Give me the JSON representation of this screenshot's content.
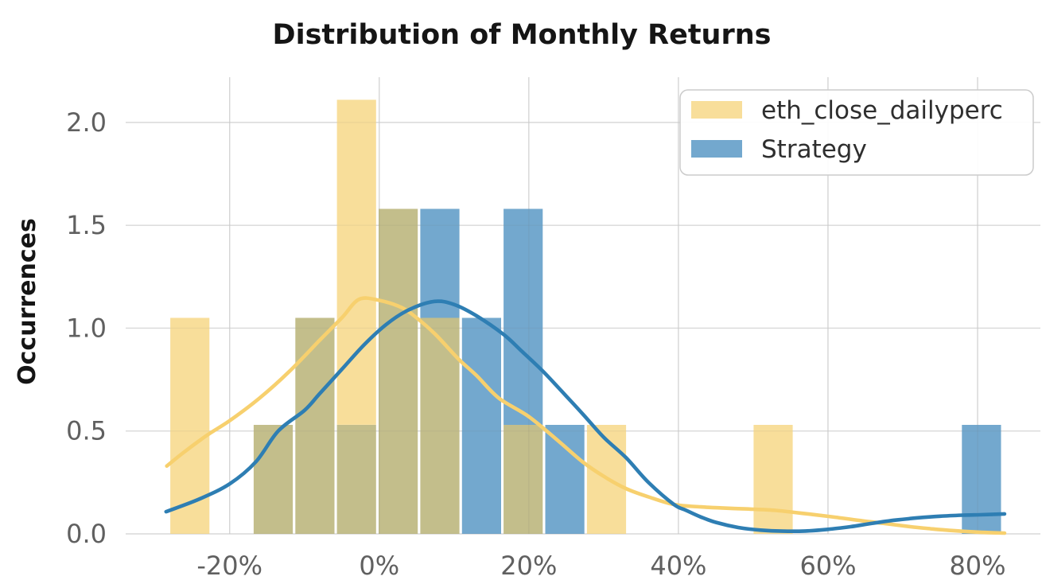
{
  "chart_data": {
    "type": "bar",
    "subtype": "overlapping-histogram-with-kde",
    "title": "Distribution of Monthly Returns",
    "ylabel": "Occurrences",
    "xlabel": "",
    "grid": true,
    "legend_position": "upper right",
    "x_tick_labels": [
      "-20%",
      "0%",
      "20%",
      "40%",
      "60%",
      "80%"
    ],
    "x_tick_values": [
      -20,
      0,
      20,
      40,
      60,
      80
    ],
    "y_tick_labels": [
      "0.0",
      "0.5",
      "1.0",
      "1.5",
      "2.0"
    ],
    "y_tick_values": [
      0,
      0.5,
      1.0,
      1.5,
      2.0
    ],
    "xlim": [
      -33.9,
      88.4
    ],
    "ylim": [
      0,
      2.22
    ],
    "x_unit": "percent",
    "bins": {
      "start": -28.1,
      "width": 5.57,
      "count": 20
    },
    "series": [
      {
        "name": "eth_close_dailyperc",
        "color": "#F8DE9A",
        "values": [
          1.05,
          0,
          0.53,
          1.05,
          2.11,
          1.58,
          1.05,
          0,
          0.53,
          0,
          0.53,
          0,
          0,
          0,
          0.53,
          0,
          0,
          0,
          0,
          0
        ]
      },
      {
        "name": "Strategy",
        "color": "#73A8CE",
        "values": [
          0,
          0,
          0.53,
          1.05,
          0.53,
          1.58,
          1.58,
          1.05,
          1.58,
          0.53,
          0,
          0,
          0,
          0,
          0,
          0,
          0,
          0,
          0,
          0.53
        ]
      }
    ],
    "overlap_color": "#C3BE8B",
    "kde": [
      {
        "name": "eth_close_dailyperc",
        "color": "#F7D06E",
        "points": [
          [
            -28.4,
            0.33
          ],
          [
            -26,
            0.4
          ],
          [
            -23,
            0.48
          ],
          [
            -20,
            0.55
          ],
          [
            -16,
            0.66
          ],
          [
            -12,
            0.79
          ],
          [
            -8,
            0.94
          ],
          [
            -5,
            1.05
          ],
          [
            -2.7,
            1.14
          ],
          [
            0,
            1.135
          ],
          [
            3,
            1.1
          ],
          [
            5,
            1.05
          ],
          [
            7.5,
            0.97
          ],
          [
            10.6,
            0.85
          ],
          [
            13,
            0.77
          ],
          [
            16,
            0.66
          ],
          [
            20,
            0.57
          ],
          [
            24,
            0.45
          ],
          [
            27.2,
            0.35
          ],
          [
            30,
            0.28
          ],
          [
            33,
            0.22
          ],
          [
            36,
            0.18
          ],
          [
            39.4,
            0.143
          ],
          [
            43,
            0.131
          ],
          [
            47,
            0.124
          ],
          [
            50,
            0.12
          ],
          [
            53,
            0.114
          ],
          [
            55.6,
            0.104
          ],
          [
            58,
            0.094
          ],
          [
            61,
            0.081
          ],
          [
            64,
            0.066
          ],
          [
            67.7,
            0.05
          ],
          [
            71,
            0.035
          ],
          [
            74,
            0.024
          ],
          [
            77,
            0.015
          ],
          [
            80.3,
            0.008
          ],
          [
            83.6,
            0.004
          ]
        ]
      },
      {
        "name": "Strategy",
        "color": "#2E7EB3",
        "points": [
          [
            -28.5,
            0.108
          ],
          [
            -24,
            0.17
          ],
          [
            -20,
            0.243
          ],
          [
            -16.5,
            0.35
          ],
          [
            -13.5,
            0.5
          ],
          [
            -10,
            0.6
          ],
          [
            -8,
            0.68
          ],
          [
            -5,
            0.8
          ],
          [
            -2,
            0.92
          ],
          [
            1,
            1.02
          ],
          [
            4,
            1.09
          ],
          [
            7.4,
            1.13
          ],
          [
            10,
            1.115
          ],
          [
            13,
            1.06
          ],
          [
            16.6,
            0.97
          ],
          [
            19,
            0.89
          ],
          [
            21.9,
            0.79
          ],
          [
            25,
            0.67
          ],
          [
            27.4,
            0.575
          ],
          [
            30,
            0.47
          ],
          [
            33,
            0.37
          ],
          [
            36,
            0.25
          ],
          [
            39.4,
            0.143
          ],
          [
            41,
            0.115
          ],
          [
            43,
            0.082
          ],
          [
            45,
            0.056
          ],
          [
            48,
            0.031
          ],
          [
            51,
            0.018
          ],
          [
            54,
            0.013
          ],
          [
            57,
            0.014
          ],
          [
            60,
            0.022
          ],
          [
            63,
            0.035
          ],
          [
            66,
            0.052
          ],
          [
            69,
            0.067
          ],
          [
            72,
            0.078
          ],
          [
            75,
            0.086
          ],
          [
            78,
            0.091
          ],
          [
            80.3,
            0.093
          ],
          [
            83.6,
            0.097
          ]
        ]
      }
    ],
    "legend": [
      "eth_close_dailyperc",
      "Strategy"
    ],
    "colors": {
      "grid": "#E2E2E2",
      "tick_label": "#606060",
      "title": "#151515",
      "legend_border": "#CBCBCB",
      "background": "#FFFFFF"
    }
  }
}
